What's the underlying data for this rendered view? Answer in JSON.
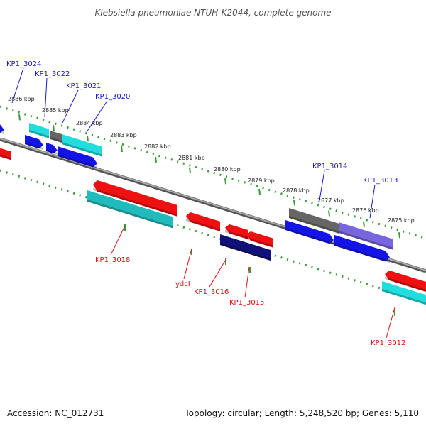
{
  "title": "Klebsiella pneumoniae NTUH-K2044, complete genome",
  "footer": {
    "accession": "Accession: NC_012731",
    "topology": "Topology: circular; Length: 5,248,520 bp; Genes: 5,110"
  },
  "colors": {
    "backbone": "#888888",
    "dots": "#3a9a3a",
    "blue_label": "#1a1acc",
    "red_label": "#dd1111"
  },
  "kbp_ticks": [
    {
      "label": "2886 kbp"
    },
    {
      "label": "2885 kbp"
    },
    {
      "label": "2884 kbp"
    },
    {
      "label": "2883 kbp"
    },
    {
      "label": "2882 kbp"
    },
    {
      "label": "2881 kbp"
    },
    {
      "label": "2880 kbp"
    },
    {
      "label": "2879 kbp"
    },
    {
      "label": "2878 kbp"
    },
    {
      "label": "2877 kbp"
    },
    {
      "label": "2876 kbp"
    },
    {
      "label": "2875 kbp"
    }
  ],
  "gene_labels_top": [
    {
      "label": "KP1_3024"
    },
    {
      "label": "KP1_3022"
    },
    {
      "label": "KP1_3021"
    },
    {
      "label": "KP1_3020"
    },
    {
      "label": "KP1_3014"
    },
    {
      "label": "KP1_3013"
    }
  ],
  "gene_labels_bottom": [
    {
      "label": "KP1_3018"
    },
    {
      "label": "ydcI"
    },
    {
      "label": "KP1_3016"
    },
    {
      "label": "KP1_3015"
    },
    {
      "label": "KP1_3012"
    }
  ],
  "gene_colors": {
    "blue": "#1414e6",
    "cyan": "#22dddd",
    "gray": "#666666",
    "teal": "#22bbbb",
    "navy": "#111177",
    "lavender": "#7766dd",
    "red": "#ee1111"
  }
}
